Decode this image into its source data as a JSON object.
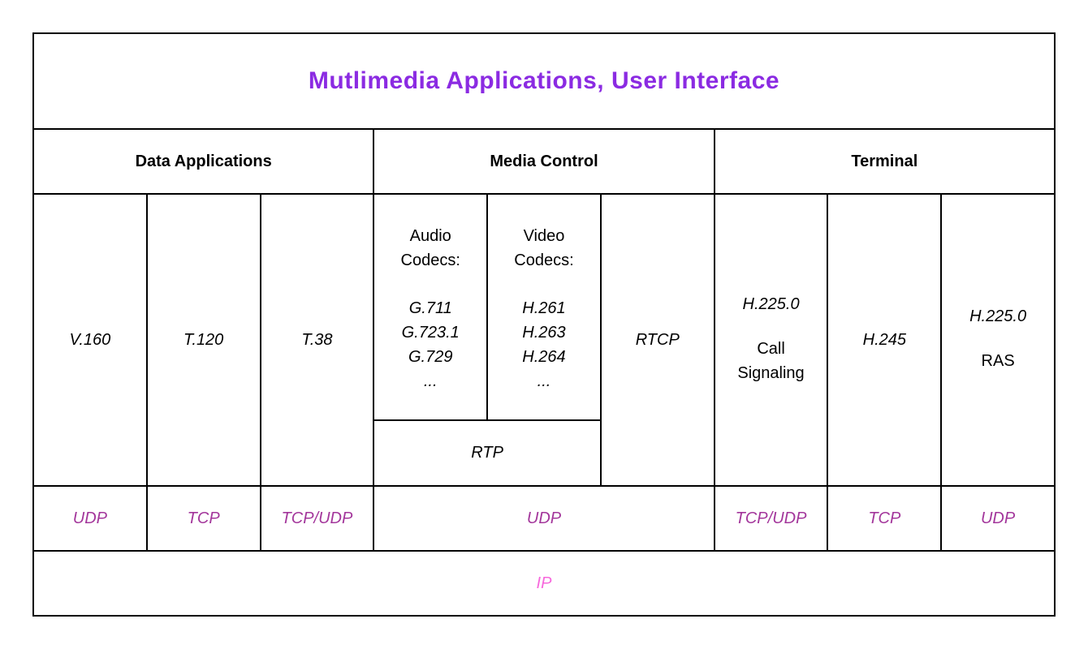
{
  "title": "Mutlimedia Applications, User Interface",
  "colors": {
    "title": "#8B2BE2",
    "transport": "#A3369B",
    "ip": "#F768DC",
    "line": "#000000"
  },
  "sections": {
    "data_applications": "Data Applications",
    "media_control": "Media Control",
    "terminal": "Terminal"
  },
  "protocols": {
    "v160": "V.160",
    "t120": "T.120",
    "t38": "T.38",
    "audio": {
      "header": "Audio Codecs:",
      "items": [
        "G.711",
        "G.723.1",
        "G.729",
        "..."
      ]
    },
    "video": {
      "header": "Video Codecs:",
      "items": [
        "H.261",
        "H.263",
        "H.264",
        "..."
      ]
    },
    "rtcp": "RTCP",
    "rtp": "RTP",
    "call_signaling": {
      "protocol": "H.225.0",
      "label": "Call Signaling"
    },
    "h245": "H.245",
    "ras": {
      "protocol": "H.225.0",
      "label": "RAS"
    }
  },
  "transport": [
    "UDP",
    "TCP",
    "TCP/UDP",
    "UDP",
    "TCP/UDP",
    "TCP",
    "UDP"
  ],
  "network": "IP"
}
